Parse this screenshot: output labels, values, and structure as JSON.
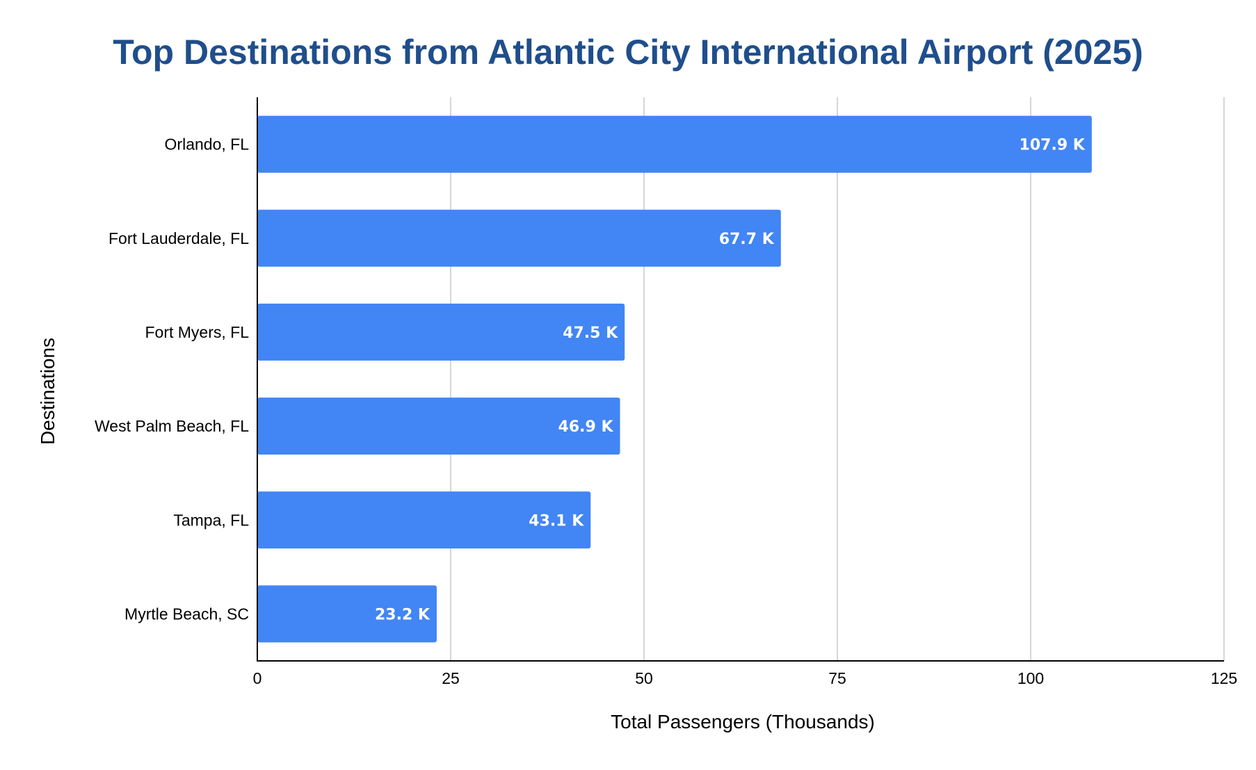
{
  "chart_data": {
    "type": "bar",
    "orientation": "horizontal",
    "title": "Top Destinations from Atlantic City International Airport (2025)",
    "xlabel": "Total Passengers (Thousands)",
    "ylabel": "Destinations",
    "categories": [
      "Orlando, FL",
      "Fort Lauderdale, FL",
      "Fort Myers, FL",
      "West Palm Beach, FL",
      "Tampa, FL",
      "Myrtle Beach, SC"
    ],
    "values": [
      107.9,
      67.7,
      47.5,
      46.9,
      43.1,
      23.2
    ],
    "data_labels": [
      "107.9 K",
      "67.7 K",
      "47.5 K",
      "46.9 K",
      "43.1 K",
      "23.2 K"
    ],
    "xlim": [
      0,
      125
    ],
    "xticks": [
      0,
      25,
      50,
      75,
      100,
      125
    ],
    "xtick_labels": [
      "0",
      "25",
      "50",
      "75",
      "100",
      "125"
    ],
    "grid": "vertical",
    "legend": "none",
    "colors": {
      "bar": "#4285f4",
      "title": "#1f4e8c",
      "grid": "#c8c8c8",
      "axis": "#000000",
      "data_label": "#ffffff"
    }
  }
}
